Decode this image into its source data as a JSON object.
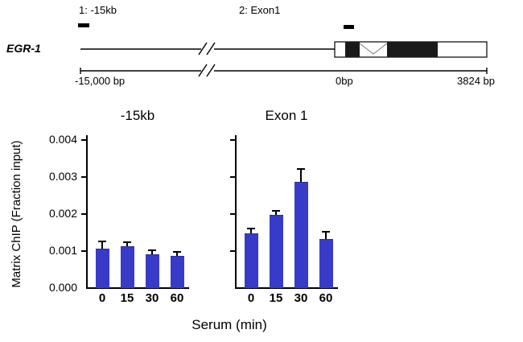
{
  "gene_diagram": {
    "gene_label": "EGR-1",
    "primer1_label": "1: -15kb",
    "primer2_label": "2: Exon1",
    "coord_left": "-15,000  bp",
    "coord_zero": "0bp",
    "coord_right": "3824 bp"
  },
  "chart_data": {
    "type": "bar",
    "title": "",
    "ylabel": "Matrix ChIP (Fraction input)",
    "xlabel": "Serum (min)",
    "ylim": [
      0,
      0.004
    ],
    "ytick_labels": [
      "0.000",
      "0.001",
      "0.002",
      "0.003",
      "0.004"
    ],
    "categories": [
      "0",
      "15",
      "30",
      "60"
    ],
    "bar_color": "#383bc8",
    "bar_edge_color": "#2a2ca6",
    "error_color": "#000000",
    "grid": false,
    "legend": "none",
    "panels": [
      {
        "name": "-15kb",
        "values": [
          0.00105,
          0.0011,
          0.0009,
          0.00085
        ],
        "errors": [
          0.0002,
          0.0001,
          0.0001,
          0.0001
        ]
      },
      {
        "name": "Exon 1",
        "values": [
          0.00145,
          0.00195,
          0.00285,
          0.0013
        ],
        "errors": [
          0.00012,
          0.0001,
          0.00035,
          0.0002
        ]
      }
    ]
  }
}
